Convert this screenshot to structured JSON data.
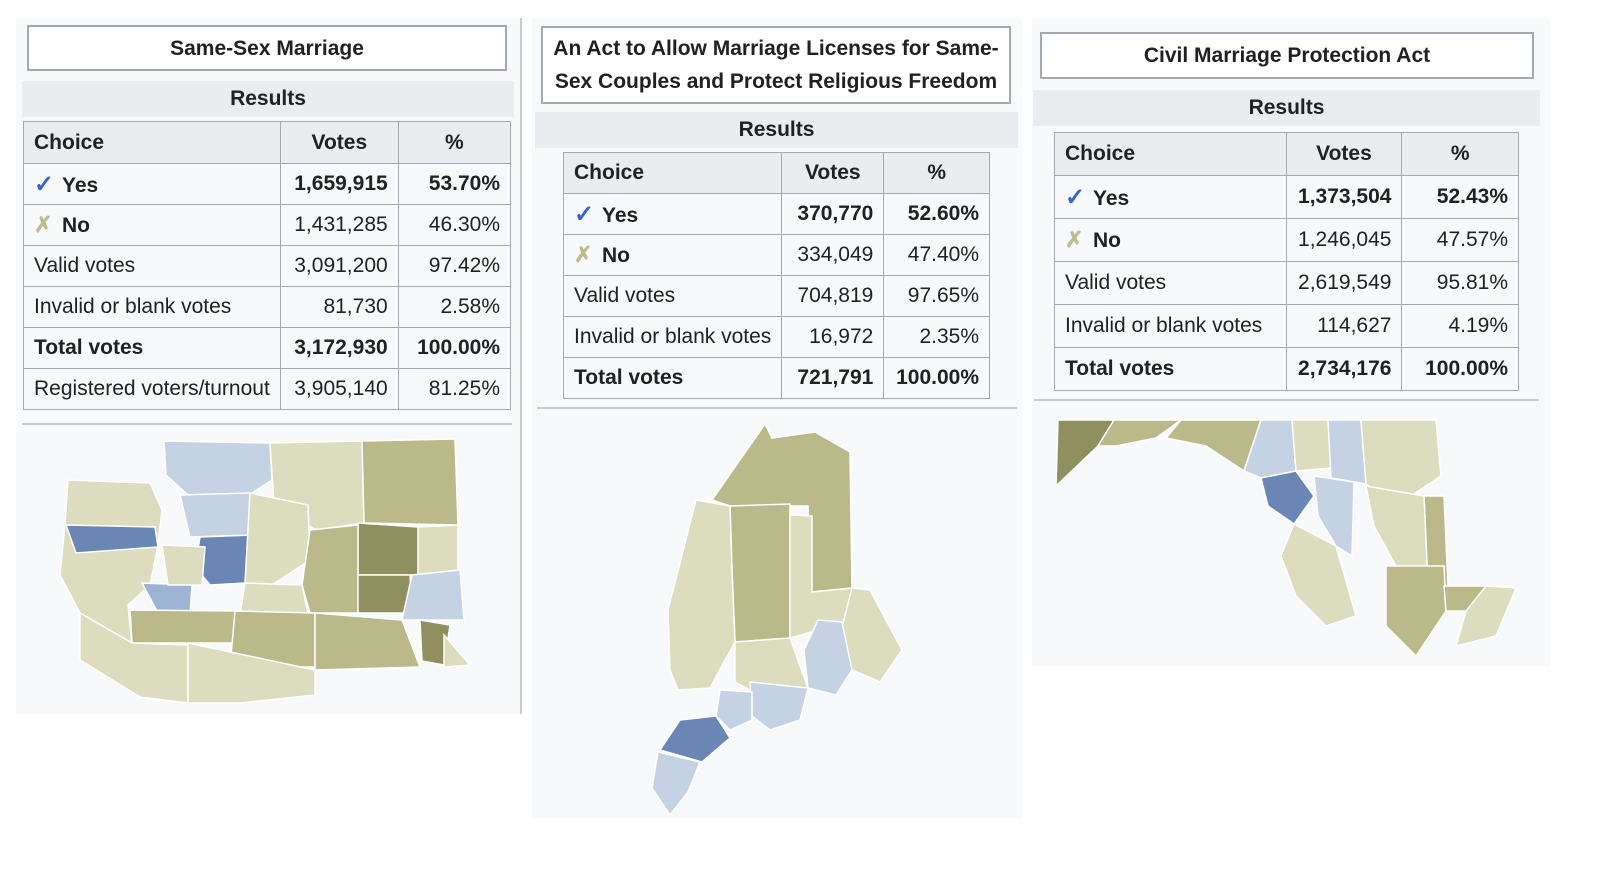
{
  "colors": {
    "yes_strong": "#6a86b5",
    "yes_mid": "#9db3d4",
    "yes_light": "#c4d2e3",
    "no_light": "#dcdcbe",
    "no_mid": "#b9b98a",
    "no_strong": "#8f8f5f"
  },
  "panels": [
    {
      "title": "Same-Sex Marriage",
      "results_label": "Results",
      "headers": [
        "Choice",
        "Votes",
        "%"
      ],
      "rows": [
        {
          "icon": "check-icon",
          "choice": "Yes",
          "votes": "1,659,915",
          "pct": "53.70%",
          "bold": true
        },
        {
          "icon": "cross-icon",
          "choice": "No",
          "votes": "1,431,285",
          "pct": "46.30%",
          "bold": false
        },
        {
          "choice": "Valid votes",
          "votes": "3,091,200",
          "pct": "97.42%",
          "bold": false
        },
        {
          "choice": "Invalid or blank votes",
          "votes": "81,730",
          "pct": "2.58%",
          "bold": false
        },
        {
          "choice": "Total votes",
          "votes": "3,172,930",
          "pct": "100.00%",
          "bold": true
        },
        {
          "choice": "Registered voters/turnout",
          "votes": "3,905,140",
          "pct": "81.25%",
          "bold": false
        }
      ],
      "map": "washington-county-map"
    },
    {
      "title": "An Act to Allow Marriage Licenses for Same-Sex Couples and Protect Religious Freedom",
      "results_label": "Results",
      "headers": [
        "Choice",
        "Votes",
        "%"
      ],
      "rows": [
        {
          "icon": "check-icon",
          "choice": "Yes",
          "votes": "370,770",
          "pct": "52.60%",
          "bold": true
        },
        {
          "icon": "cross-icon",
          "choice": "No",
          "votes": "334,049",
          "pct": "47.40%",
          "bold": false
        },
        {
          "choice": "Valid votes",
          "votes": "704,819",
          "pct": "97.65%",
          "bold": false
        },
        {
          "choice": "Invalid or blank votes",
          "votes": "16,972",
          "pct": "2.35%",
          "bold": false
        },
        {
          "choice": "Total votes",
          "votes": "721,791",
          "pct": "100.00%",
          "bold": true
        }
      ],
      "map": "maine-county-map"
    },
    {
      "title": "Civil Marriage Protection Act",
      "results_label": "Results",
      "headers": [
        "Choice",
        "Votes",
        "%"
      ],
      "rows": [
        {
          "icon": "check-icon",
          "choice": "Yes",
          "votes": "1,373,504",
          "pct": "52.43%",
          "bold": true
        },
        {
          "icon": "cross-icon",
          "choice": "No",
          "votes": "1,246,045",
          "pct": "47.57%",
          "bold": false
        },
        {
          "choice": "Valid votes",
          "votes": "2,619,549",
          "pct": "95.81%",
          "bold": false
        },
        {
          "choice": "Invalid or blank votes",
          "votes": "114,627",
          "pct": "4.19%",
          "bold": false
        },
        {
          "choice": "Total votes",
          "votes": "2,734,176",
          "pct": "100.00%",
          "bold": true
        }
      ],
      "map": "maryland-county-map"
    }
  ]
}
